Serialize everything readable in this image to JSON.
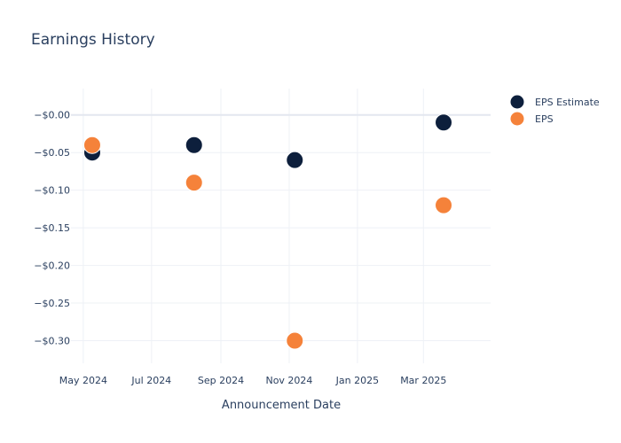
{
  "chart_data": {
    "type": "scatter",
    "title": "Earnings History",
    "xlabel": "Announcement Date",
    "ylabel": "",
    "x_ticks": [
      "May 2024",
      "Jul 2024",
      "Sep 2024",
      "Nov 2024",
      "Jan 2025",
      "Mar 2025"
    ],
    "y_ticks": [
      "−$0.00",
      "−$0.05",
      "−$0.10",
      "−$0.15",
      "−$0.20",
      "−$0.25",
      "−$0.30"
    ],
    "ylim": [
      -0.33,
      0.035
    ],
    "xlim": [
      "2024-04-20",
      "2025-04-30"
    ],
    "legend_position": "top-right",
    "grid": true,
    "series": [
      {
        "name": "EPS Estimate",
        "color": "#0d1f3c",
        "x": [
          "2024-05-09",
          "2024-08-08",
          "2024-11-06",
          "2025-03-19"
        ],
        "y": [
          -0.05,
          -0.04,
          -0.06,
          -0.01
        ]
      },
      {
        "name": "EPS",
        "color": "#f5823a",
        "x": [
          "2024-05-09",
          "2024-08-08",
          "2024-11-06",
          "2025-03-19"
        ],
        "y": [
          -0.04,
          -0.09,
          -0.3,
          -0.12
        ]
      }
    ]
  }
}
